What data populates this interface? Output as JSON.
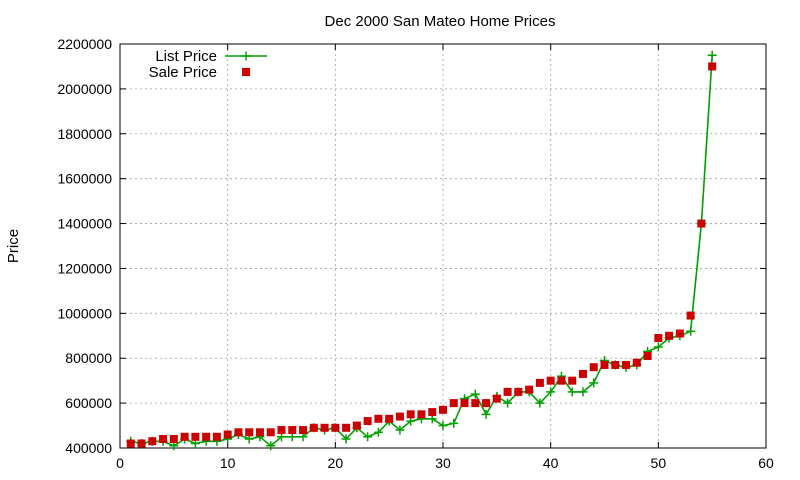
{
  "chart_data": {
    "type": "line",
    "title": "Dec 2000 San Mateo Home Prices",
    "xlabel": "",
    "ylabel": "Price",
    "xlim": [
      0,
      60
    ],
    "ylim": [
      400000,
      2200000
    ],
    "xticks": [
      0,
      10,
      20,
      30,
      40,
      50,
      60
    ],
    "yticks": [
      400000,
      600000,
      800000,
      1000000,
      1200000,
      1400000,
      1600000,
      1800000,
      2000000,
      2200000
    ],
    "grid": true,
    "legend_position": "top-left",
    "series": [
      {
        "name": "List Price",
        "style": "line-with-plus-markers",
        "color": "#00a000",
        "x": [
          1,
          2,
          3,
          4,
          5,
          6,
          7,
          8,
          9,
          10,
          11,
          12,
          13,
          14,
          15,
          16,
          17,
          18,
          19,
          20,
          21,
          22,
          23,
          24,
          25,
          26,
          27,
          28,
          29,
          30,
          31,
          32,
          33,
          34,
          35,
          36,
          37,
          38,
          39,
          40,
          41,
          42,
          43,
          44,
          45,
          46,
          47,
          48,
          49,
          50,
          51,
          52,
          53,
          54,
          55
        ],
        "values": [
          430000,
          420000,
          430000,
          430000,
          410000,
          440000,
          420000,
          430000,
          430000,
          440000,
          460000,
          440000,
          450000,
          410000,
          450000,
          450000,
          450000,
          490000,
          480000,
          490000,
          440000,
          490000,
          450000,
          470000,
          520000,
          480000,
          520000,
          530000,
          530000,
          500000,
          510000,
          620000,
          640000,
          550000,
          630000,
          600000,
          650000,
          650000,
          600000,
          650000,
          720000,
          650000,
          650000,
          690000,
          790000,
          770000,
          760000,
          770000,
          830000,
          850000,
          890000,
          900000,
          920000,
          1400000,
          2150000
        ]
      },
      {
        "name": "Sale Price",
        "style": "square-markers",
        "color": "#cc0000",
        "x": [
          1,
          2,
          3,
          4,
          5,
          6,
          7,
          8,
          9,
          10,
          11,
          12,
          13,
          14,
          15,
          16,
          17,
          18,
          19,
          20,
          21,
          22,
          23,
          24,
          25,
          26,
          27,
          28,
          29,
          30,
          31,
          32,
          33,
          34,
          35,
          36,
          37,
          38,
          39,
          40,
          41,
          42,
          43,
          44,
          45,
          46,
          47,
          48,
          49,
          50,
          51,
          52,
          53,
          54,
          55
        ],
        "values": [
          420000,
          420000,
          430000,
          440000,
          440000,
          450000,
          450000,
          450000,
          450000,
          460000,
          470000,
          470000,
          470000,
          470000,
          480000,
          480000,
          480000,
          490000,
          490000,
          490000,
          490000,
          500000,
          520000,
          530000,
          530000,
          540000,
          550000,
          550000,
          560000,
          570000,
          600000,
          600000,
          600000,
          600000,
          620000,
          650000,
          650000,
          660000,
          690000,
          700000,
          700000,
          700000,
          730000,
          760000,
          770000,
          770000,
          770000,
          780000,
          810000,
          890000,
          900000,
          910000,
          990000,
          1400000,
          2100000
        ]
      }
    ]
  }
}
